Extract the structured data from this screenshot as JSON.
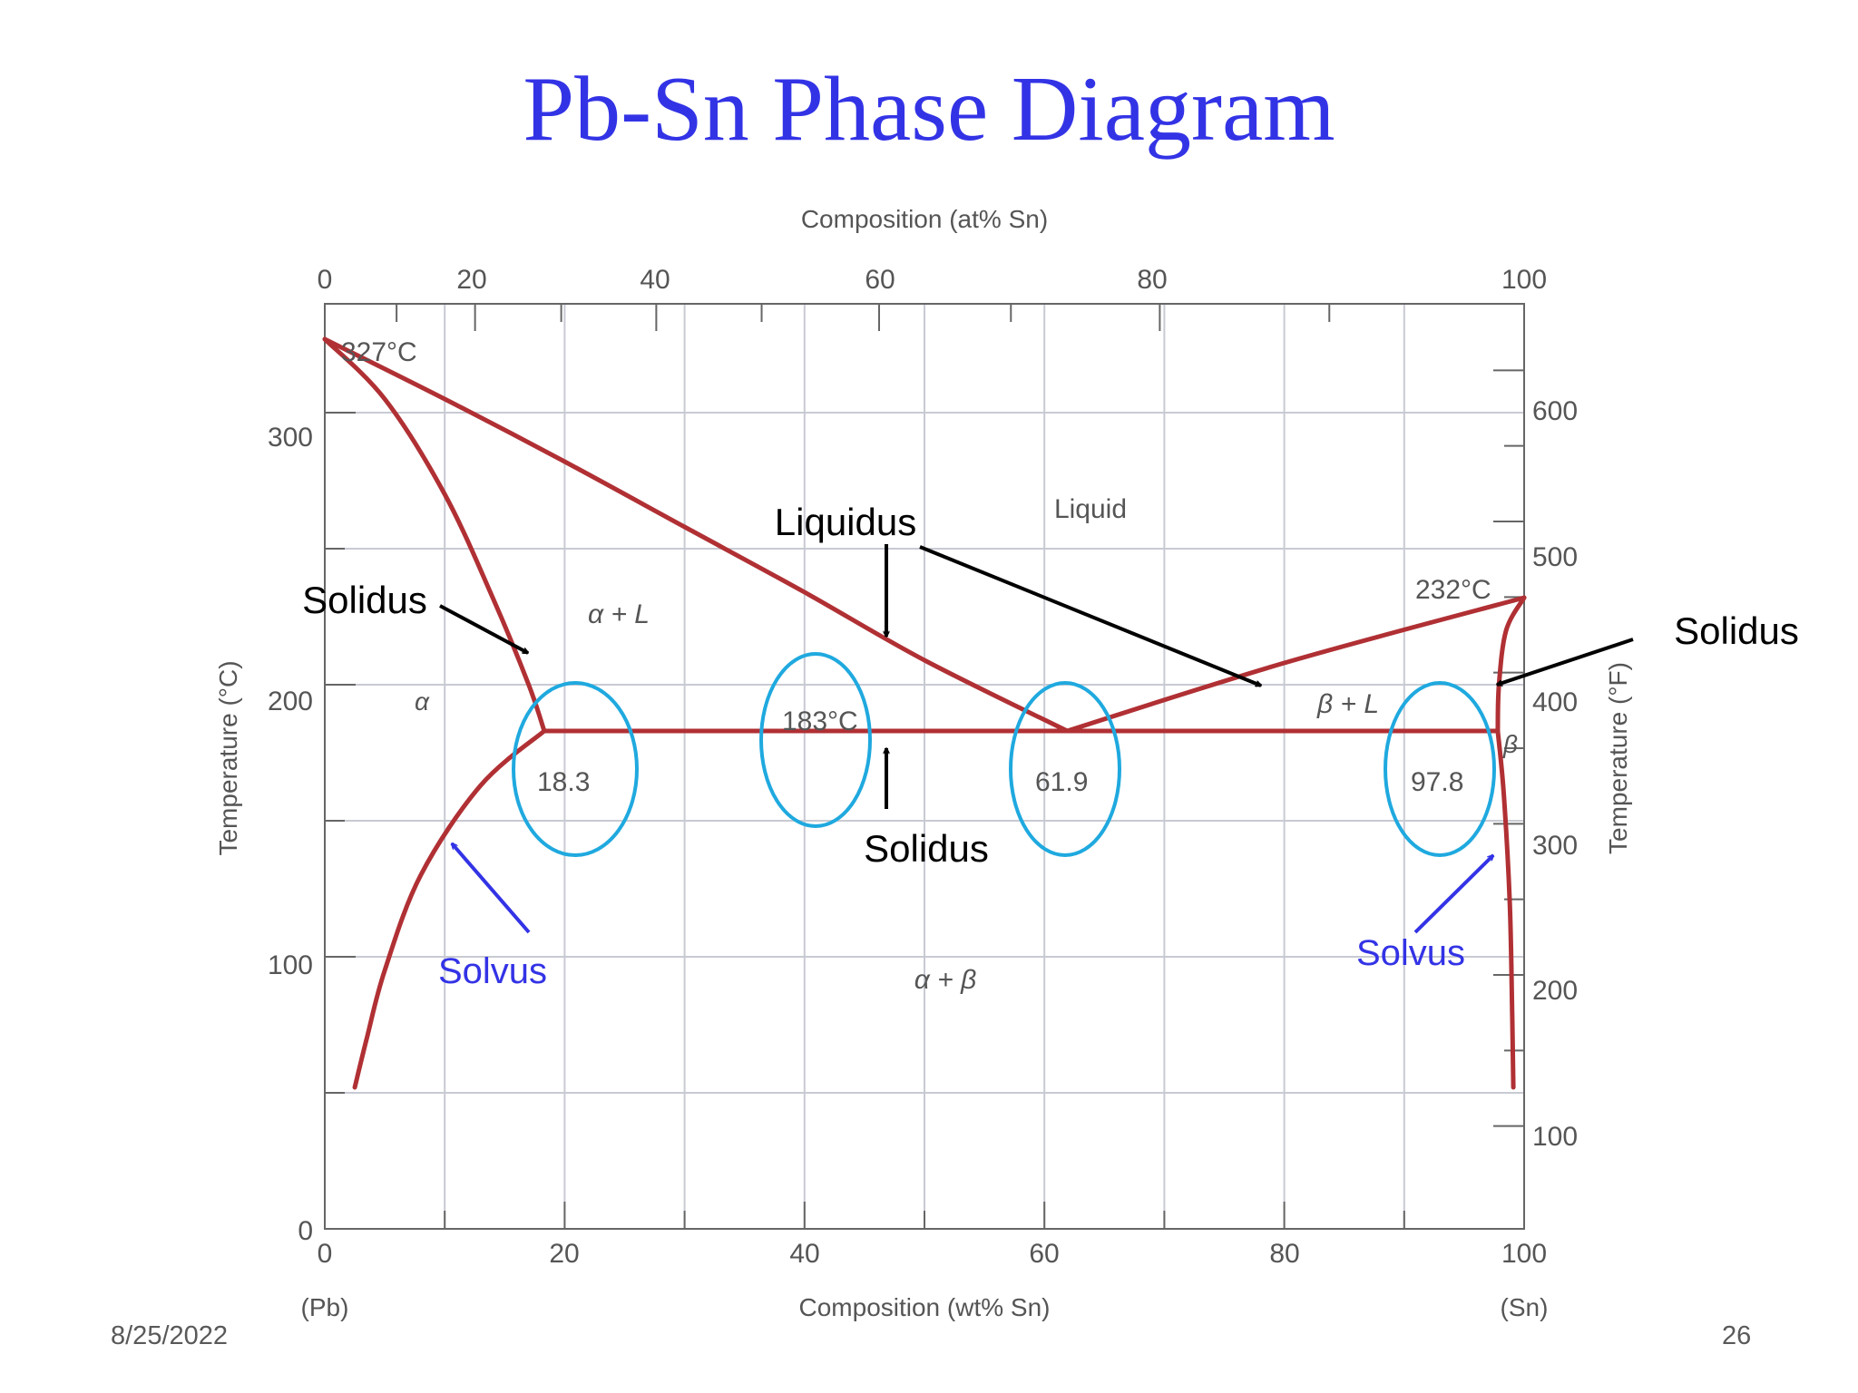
{
  "slide": {
    "title": "Pb-Sn Phase Diagram",
    "date": "8/25/2022",
    "page_number": "26"
  },
  "colors": {
    "title": "#3333e6",
    "phase_boundary": "#b03034",
    "circle": "#1fa9df",
    "annotation_black": "#000000",
    "annotation_blue": "#3333e6",
    "grid": "#c8cad3",
    "axis_text": "#555555"
  },
  "chart_data": {
    "type": "line",
    "xlabel_bottom": "Composition (wt% Sn)",
    "xlabel_top": "Composition (at% Sn)",
    "ylabel_left": "Temperature (°C)",
    "ylabel_right": "Temperature (°F)",
    "x_range_wt": [
      0,
      100
    ],
    "y_range_c": [
      0,
      340
    ],
    "x_ticks_bottom": [
      "0",
      "20",
      "40",
      "60",
      "80",
      "100"
    ],
    "x_ticks_top": [
      "0",
      "20",
      "40",
      "60",
      "80",
      "100"
    ],
    "y_ticks_left": [
      "0",
      "100",
      "200",
      "300"
    ],
    "y_ticks_right": [
      "100",
      "200",
      "300",
      "400",
      "500",
      "600"
    ],
    "endpoint_labels": [
      "(Pb)",
      "(Sn)"
    ],
    "grid": true,
    "series": [
      {
        "key": "liquidus_pb",
        "x": [
          0,
          10,
          20,
          30,
          40,
          50,
          61.9
        ],
        "y": [
          327,
          305,
          282,
          258,
          234,
          209,
          183
        ]
      },
      {
        "key": "liquidus_sn",
        "x": [
          61.9,
          80,
          100
        ],
        "y": [
          183,
          208,
          232
        ]
      },
      {
        "key": "solidus_alpha",
        "x": [
          0,
          5,
          10,
          14,
          17,
          18.3
        ],
        "y": [
          327,
          305,
          270,
          232,
          200,
          183
        ]
      },
      {
        "key": "eutectic_isotherm",
        "x": [
          18.3,
          97.8
        ],
        "y": [
          183,
          183
        ]
      },
      {
        "key": "solvus_alpha",
        "x": [
          18.3,
          13,
          8,
          5,
          3.5,
          2.5
        ],
        "y": [
          183,
          163,
          130,
          95,
          70,
          52
        ]
      },
      {
        "key": "solidus_beta",
        "x": [
          97.8,
          97.9,
          98.5,
          100
        ],
        "y": [
          183,
          200,
          220,
          232
        ]
      },
      {
        "key": "solvus_beta",
        "x": [
          97.8,
          98.3,
          98.8,
          99,
          99.1
        ],
        "y": [
          183,
          160,
          120,
          80,
          52
        ]
      }
    ],
    "annotations": {
      "melting_pb": "327°C",
      "melting_sn": "232°C",
      "eutectic_temp": "183°C",
      "comp_alpha": "18.3",
      "comp_eutectic": "61.9",
      "comp_beta": "97.8"
    },
    "regions": {
      "liquid": "Liquid",
      "alpha_liquid": "α + L",
      "alpha": "α",
      "beta_liquid": "β + L",
      "beta": "β",
      "alpha_beta": "α + β"
    }
  },
  "callouts": {
    "liquidus": "Liquidus",
    "solidus_left": "Solidus",
    "solidus_center": "Solidus",
    "solidus_right": "Solidus",
    "solvus_left": "Solvus",
    "solvus_right": "Solvus"
  }
}
